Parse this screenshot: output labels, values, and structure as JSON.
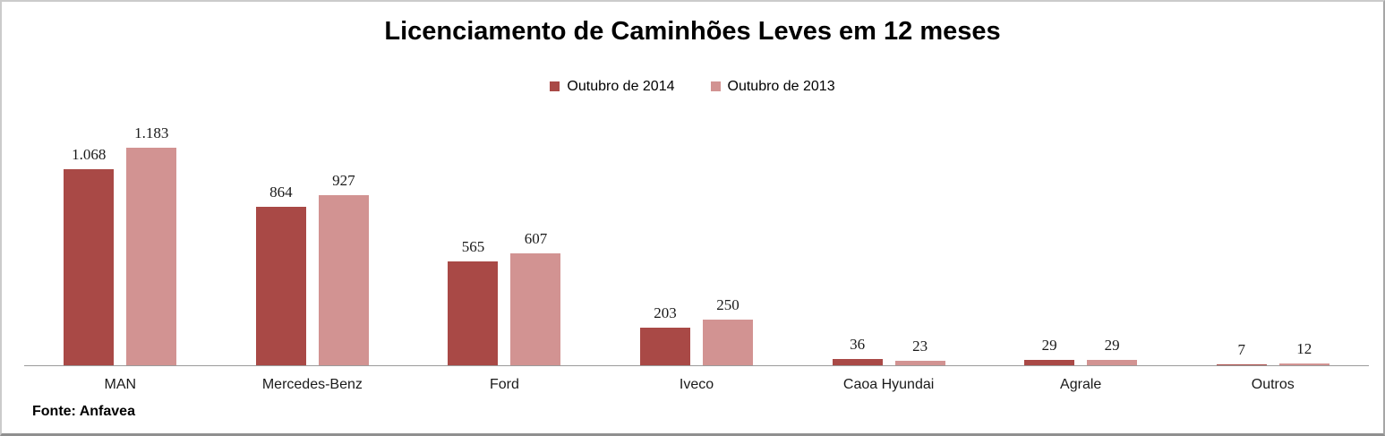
{
  "title": "Licenciamento de Caminhões Leves em 12 meses",
  "footer": {
    "source": "Fonte: Anfavea"
  },
  "colors": {
    "series_2014": "#A94946",
    "series_2013": "#D29392",
    "axis_line": "#9B9B9B"
  },
  "chart_data": {
    "type": "bar",
    "title": "Licenciamento de Caminhões Leves em 12 meses",
    "categories": [
      "MAN",
      "Mercedes-Benz",
      "Ford",
      "Iveco",
      "Caoa Hyundai",
      "Agrale",
      "Outros"
    ],
    "series": [
      {
        "name": "Outubro de 2014",
        "color": "#A94946",
        "values": [
          1068,
          864,
          565,
          203,
          36,
          29,
          7
        ],
        "labels": [
          "1.068",
          "864",
          "565",
          "203",
          "36",
          "29",
          "7"
        ]
      },
      {
        "name": "Outubro de 2013",
        "color": "#D29392",
        "values": [
          1183,
          927,
          607,
          250,
          23,
          29,
          12
        ],
        "labels": [
          "1.183",
          "927",
          "607",
          "250",
          "23",
          "29",
          "12"
        ]
      }
    ],
    "xlabel": "",
    "ylabel": "",
    "ylim": [
      0,
      1200
    ],
    "grid": false,
    "legend_position": "top",
    "data_labels": true,
    "source": "Fonte: Anfavea"
  }
}
